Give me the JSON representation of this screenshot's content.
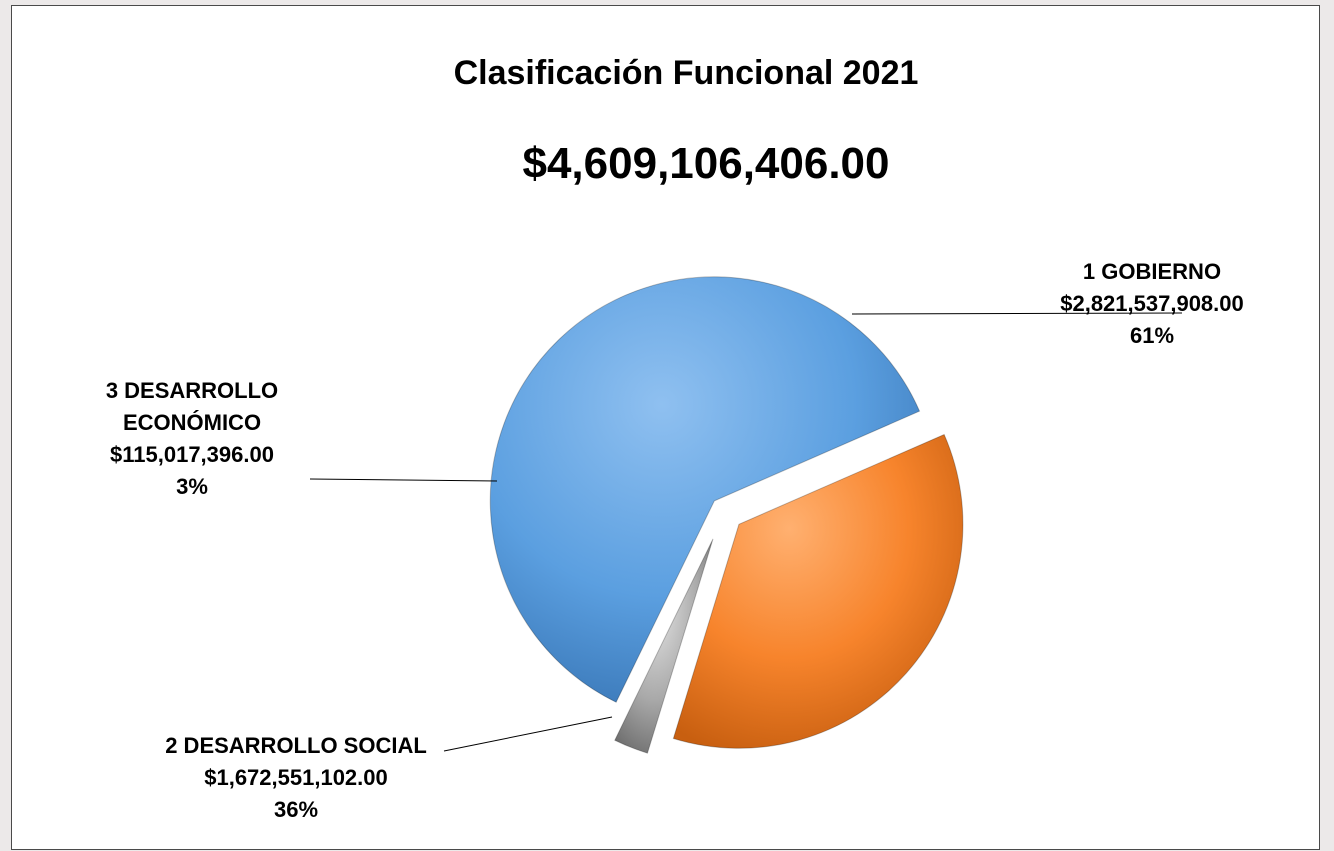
{
  "chart_data": {
    "type": "pie",
    "title": "Clasificación Funcional 2021",
    "subtitle": "$4,609,106,406.00",
    "slices": [
      {
        "name": "1 GOBIERNO",
        "value": 2821537908.0,
        "value_label": "$2,821,537,908.00",
        "percent_label": "61%",
        "color": "#5b9bd5"
      },
      {
        "name": "2 DESARROLLO SOCIAL",
        "value": 1672551102.0,
        "value_label": "$1,672,551,102.00",
        "percent_label": "36%",
        "color": "#f58220"
      },
      {
        "name": "3 DESARROLLO ECONÓMICO",
        "name_lines": [
          "3 DESARROLLO",
          "ECONÓMICO"
        ],
        "value": 115017396.0,
        "value_label": "$115,017,396.00",
        "percent_label": "3%",
        "color": "#a5a5a5"
      }
    ],
    "exploded": true,
    "legend": "none"
  }
}
